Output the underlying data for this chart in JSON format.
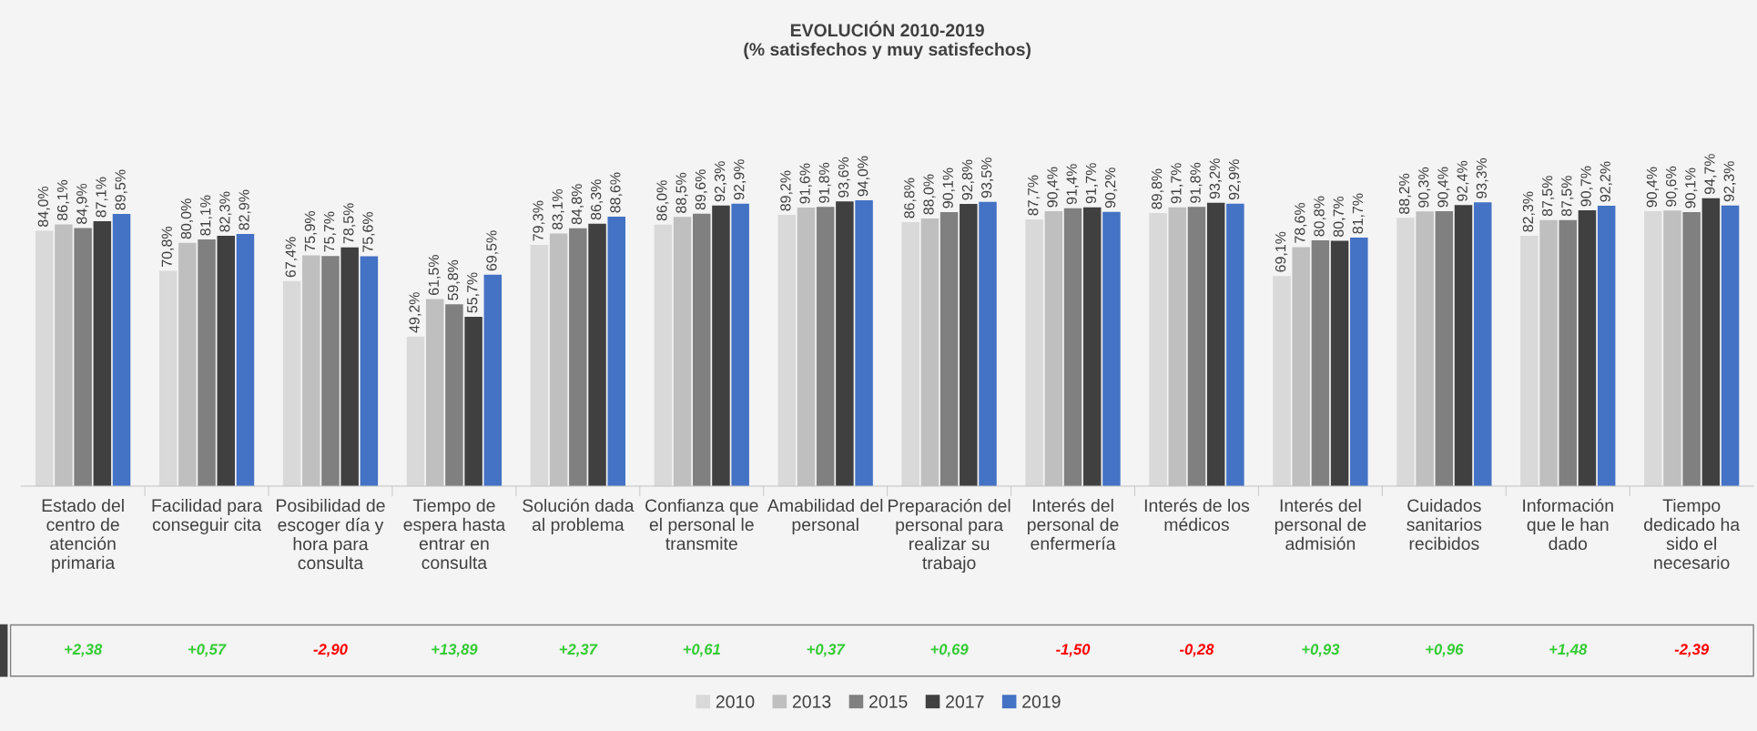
{
  "chart_data": {
    "type": "bar",
    "title": "EVOLUCIÓN 2010-2019\n(% satisfechos y muy satisfechos)",
    "categories": [
      "Estado del\ncentro de\natención\nprimaria",
      "Facilidad para\nconseguir cita",
      "Posibilidad de\nescoger día y\nhora para\nconsulta",
      "Tiempo de\nespera hasta\nentrar en\nconsulta",
      "Solución dada\nal problema",
      "Confianza que\nel personal le\ntransmite",
      "Amabilidad del\npersonal",
      "Preparación del\npersonal para\nrealizar su\ntrabajo",
      "Interés del\npersonal de\nenfermería",
      "Interés de los\nmédicos",
      "Interés del\npersonal de\nadmisión",
      "Cuidados\nsanitarios\nrecibidos",
      "Información\nque le han\ndado",
      "Tiempo\ndedicado ha\nsido el\nnecesario"
    ],
    "series": [
      {
        "name": "2010",
        "color": "#d9d9d9",
        "values": [
          84.0,
          70.8,
          67.4,
          49.2,
          79.3,
          86.0,
          89.2,
          86.8,
          87.7,
          89.8,
          69.1,
          88.2,
          82.3,
          90.4
        ],
        "value_labels": [
          "84,0%",
          "70,8%",
          "67,4%",
          "49,2%",
          "79,3%",
          "86,0%",
          "89,2%",
          "86,8%",
          "87,7%",
          "89,8%",
          "69,1%",
          "88,2%",
          "82,3%",
          "90,4%"
        ]
      },
      {
        "name": "2013",
        "color": "#bfbfbf",
        "values": [
          86.1,
          80.0,
          75.9,
          61.5,
          83.1,
          88.5,
          91.6,
          88.0,
          90.4,
          91.7,
          78.6,
          90.3,
          87.5,
          90.6
        ],
        "value_labels": [
          "86,1%",
          "80,0%",
          "75,9%",
          "61,5%",
          "83,1%",
          "88,5%",
          "91,6%",
          "88,0%",
          "90,4%",
          "91,7%",
          "78,6%",
          "90,3%",
          "87,5%",
          "90,6%"
        ]
      },
      {
        "name": "2015",
        "color": "#808080",
        "values": [
          84.9,
          81.1,
          75.7,
          59.8,
          84.8,
          89.6,
          91.8,
          90.1,
          91.4,
          91.8,
          80.8,
          90.4,
          87.5,
          90.1
        ],
        "value_labels": [
          "84,9%",
          "81,1%",
          "75,7%",
          "59,8%",
          "84,8%",
          "89,6%",
          "91,8%",
          "90,1%",
          "91,4%",
          "91,8%",
          "80,8%",
          "90,4%",
          "87,5%",
          "90,1%"
        ]
      },
      {
        "name": "2017",
        "color": "#404040",
        "values": [
          87.1,
          82.3,
          78.5,
          55.7,
          86.3,
          92.3,
          93.6,
          92.8,
          91.7,
          93.2,
          80.7,
          92.4,
          90.7,
          94.7
        ],
        "value_labels": [
          "87,1%",
          "82,3%",
          "78,5%",
          "55,7%",
          "86,3%",
          "92,3%",
          "93,6%",
          "92,8%",
          "91,7%",
          "93,2%",
          "80,7%",
          "92,4%",
          "90,7%",
          "94,7%"
        ]
      },
      {
        "name": "2019",
        "color": "#4472c4",
        "values": [
          89.5,
          82.9,
          75.6,
          69.5,
          88.6,
          92.9,
          94.0,
          93.5,
          90.2,
          92.9,
          81.7,
          93.3,
          92.2,
          92.3
        ],
        "value_labels": [
          "89,5%",
          "82,9%",
          "75,6%",
          "69,5%",
          "88,6%",
          "92,9%",
          "94,0%",
          "93,5%",
          "90,2%",
          "92,9%",
          "81,7%",
          "93,3%",
          "92,2%",
          "92,3%"
        ]
      }
    ],
    "annotations": [
      "+2,38",
      "+0,57",
      "-2,90",
      "+13,89",
      "+2,37",
      "+0,61",
      "+0,37",
      "+0,69",
      "-1,50",
      "-0,28",
      "+0,93",
      "+0,96",
      "+1,48",
      "-2,39"
    ],
    "grid": false,
    "legend": "bottom"
  }
}
